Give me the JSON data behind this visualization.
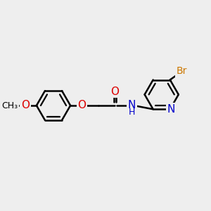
{
  "background_color": "#eeeeee",
  "bond_color": "#000000",
  "bond_width": 1.8,
  "atom_colors": {
    "O": "#dd0000",
    "N": "#0000cc",
    "Br": "#cc7700",
    "C": "#000000",
    "H": "#000000"
  },
  "font_size": 10,
  "figsize": [
    3.0,
    3.0
  ],
  "dpi": 100
}
